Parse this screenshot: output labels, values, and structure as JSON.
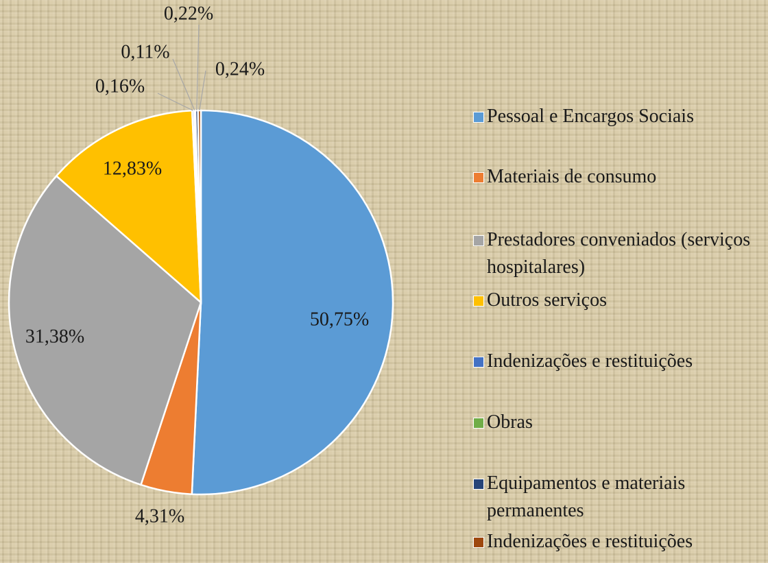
{
  "chart_data": {
    "type": "pie",
    "categories": [
      "Pessoal e Encargos Sociais",
      "Materiais de consumo",
      "Prestadores conveniados (serviços hospitalares)",
      "Outros serviços",
      "Indenizações e restituições",
      "Obras",
      "Equipamentos e materiais permanentes",
      "Indenizações e restituições"
    ],
    "values": [
      50.75,
      4.31,
      31.38,
      12.83,
      0.16,
      0.11,
      0.22,
      0.24
    ],
    "value_labels": [
      "50,75%",
      "4,31%",
      "31,38%",
      "12,83%",
      "0,16%",
      "0,11%",
      "0,22%",
      "0,24%"
    ],
    "colors": [
      "#5b9bd5",
      "#ed7d31",
      "#a5a5a5",
      "#ffc000",
      "#4472c4",
      "#70ad47",
      "#264478",
      "#9e480e"
    ],
    "legend": "right"
  }
}
